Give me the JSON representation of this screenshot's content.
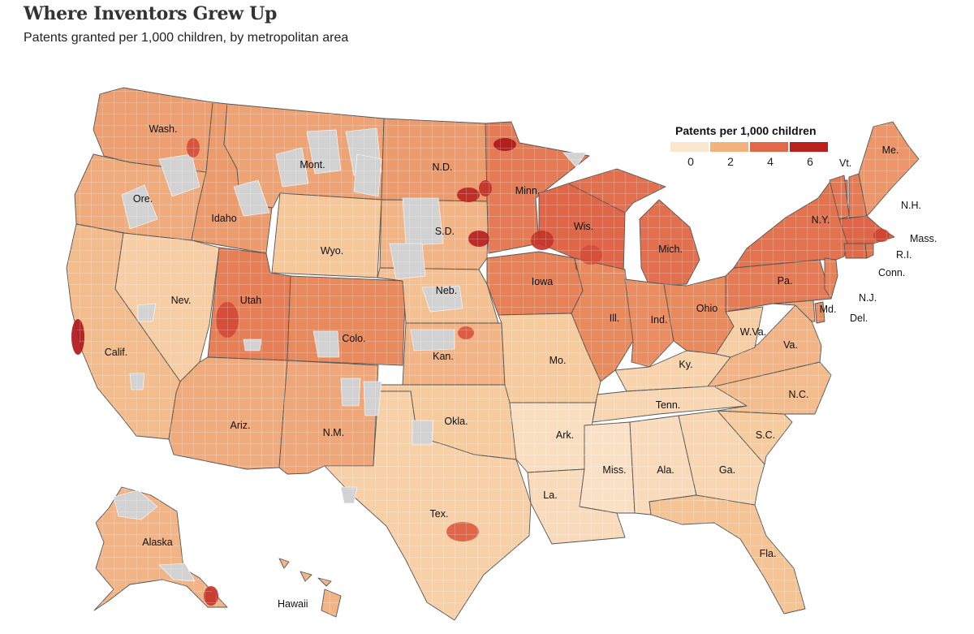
{
  "header": {
    "title": "Where Inventors Grew Up",
    "subtitle": "Patents granted per 1,000 children, by metropolitan area"
  },
  "legend": {
    "title": "Patents per 1,000 children",
    "colors": [
      "#fbe6cf",
      "#f2b27e",
      "#e2684a",
      "#b8211c"
    ],
    "ticks": [
      "0",
      "2",
      "4",
      "6"
    ]
  },
  "colors": {
    "no_data": "#d2d2d2",
    "state_border": "#555555",
    "county_border": "#ffffff"
  },
  "states": [
    {
      "id": "wa",
      "label": "Wash.",
      "level": 2.5
    },
    {
      "id": "or",
      "label": "Ore.",
      "level": 2.2
    },
    {
      "id": "ca",
      "label": "Calif.",
      "level": 1.8
    },
    {
      "id": "id",
      "label": "Idaho",
      "level": 2.6
    },
    {
      "id": "nv",
      "label": "Nev.",
      "level": 1.3
    },
    {
      "id": "mt",
      "label": "Mont.",
      "level": 2.4
    },
    {
      "id": "wy",
      "label": "Wyo.",
      "level": 1.5
    },
    {
      "id": "ut",
      "label": "Utah",
      "level": 3.3
    },
    {
      "id": "az",
      "label": "Ariz.",
      "level": 2.2
    },
    {
      "id": "co",
      "label": "Colo.",
      "level": 3.0
    },
    {
      "id": "nm",
      "label": "N.M.",
      "level": 2.3
    },
    {
      "id": "nd",
      "label": "N.D.",
      "level": 2.6
    },
    {
      "id": "sd",
      "label": "S.D.",
      "level": 2.0
    },
    {
      "id": "ne",
      "label": "Neb.",
      "level": 1.7
    },
    {
      "id": "ks",
      "label": "Kan.",
      "level": 2.0
    },
    {
      "id": "ok",
      "label": "Okla.",
      "level": 1.4
    },
    {
      "id": "tx",
      "label": "Tex.",
      "level": 1.2
    },
    {
      "id": "mn",
      "label": "Minn.",
      "level": 3.4
    },
    {
      "id": "ia",
      "label": "Iowa",
      "level": 3.2
    },
    {
      "id": "mo",
      "label": "Mo.",
      "level": 1.4
    },
    {
      "id": "ar",
      "label": "Ark.",
      "level": 0.7
    },
    {
      "id": "la",
      "label": "La.",
      "level": 0.8
    },
    {
      "id": "wi",
      "label": "Wis.",
      "level": 3.9
    },
    {
      "id": "il",
      "label": "Ill.",
      "level": 3.0
    },
    {
      "id": "mi",
      "label": "Mich.",
      "level": 3.7
    },
    {
      "id": "in",
      "label": "Ind.",
      "level": 2.9
    },
    {
      "id": "oh",
      "label": "Ohio",
      "level": 3.0
    },
    {
      "id": "ky",
      "label": "Ky.",
      "level": 1.1
    },
    {
      "id": "tn",
      "label": "Tenn.",
      "level": 1.0
    },
    {
      "id": "ms",
      "label": "Miss.",
      "level": 0.6
    },
    {
      "id": "al",
      "label": "Ala.",
      "level": 0.8
    },
    {
      "id": "ga",
      "label": "Ga.",
      "level": 1.0
    },
    {
      "id": "fl",
      "label": "Fla.",
      "level": 1.6
    },
    {
      "id": "sc",
      "label": "S.C.",
      "level": 1.4
    },
    {
      "id": "nc",
      "label": "N.C.",
      "level": 1.8
    },
    {
      "id": "va",
      "label": "Va.",
      "level": 2.0
    },
    {
      "id": "wv",
      "label": "W.Va.",
      "level": 1.3
    },
    {
      "id": "md",
      "label": "Md.",
      "level": 2.3
    },
    {
      "id": "pa",
      "label": "Pa.",
      "level": 3.4
    },
    {
      "id": "ny",
      "label": "N.Y.",
      "level": 3.6
    },
    {
      "id": "ct",
      "label": "",
      "level": 3.8
    },
    {
      "id": "ri",
      "label": "",
      "level": 3.5
    },
    {
      "id": "ma",
      "label": "",
      "level": 3.9
    },
    {
      "id": "vt",
      "label": "",
      "level": 3.5
    },
    {
      "id": "nh",
      "label": "",
      "level": 3.4
    },
    {
      "id": "me",
      "label": "Me.",
      "level": 2.7
    },
    {
      "id": "nj",
      "label": "",
      "level": 3.2
    },
    {
      "id": "de",
      "label": "",
      "level": 3.0
    },
    {
      "id": "ak",
      "label": "Alaska",
      "level": 2.0
    },
    {
      "id": "hi",
      "label": "",
      "level": 2.0
    }
  ],
  "outside_labels": [
    {
      "id": "vt",
      "label": "Vt."
    },
    {
      "id": "nh",
      "label": "N.H."
    },
    {
      "id": "ma",
      "label": "Mass."
    },
    {
      "id": "ri",
      "label": "R.I."
    },
    {
      "id": "ct",
      "label": "Conn."
    },
    {
      "id": "nj",
      "label": "N.J."
    },
    {
      "id": "de",
      "label": "Del."
    },
    {
      "id": "hi",
      "label": "Hawaii"
    }
  ],
  "hotspots": [
    {
      "id": "bay-area",
      "level": 7.0
    },
    {
      "id": "minneapolis",
      "level": 5.5
    },
    {
      "id": "rochester-mn",
      "level": 6.2
    },
    {
      "id": "sioux-falls",
      "level": 6.0
    },
    {
      "id": "fargo",
      "level": 5.6
    },
    {
      "id": "roseau",
      "level": 6.5
    },
    {
      "id": "boston",
      "level": 5.0
    },
    {
      "id": "seattle",
      "level": 4.6
    },
    {
      "id": "salt-lake",
      "level": 4.7
    },
    {
      "id": "madison",
      "level": 4.6
    },
    {
      "id": "wichita",
      "level": 4.4
    },
    {
      "id": "austin",
      "level": 4.2
    },
    {
      "id": "sitka",
      "level": 5.5
    }
  ]
}
